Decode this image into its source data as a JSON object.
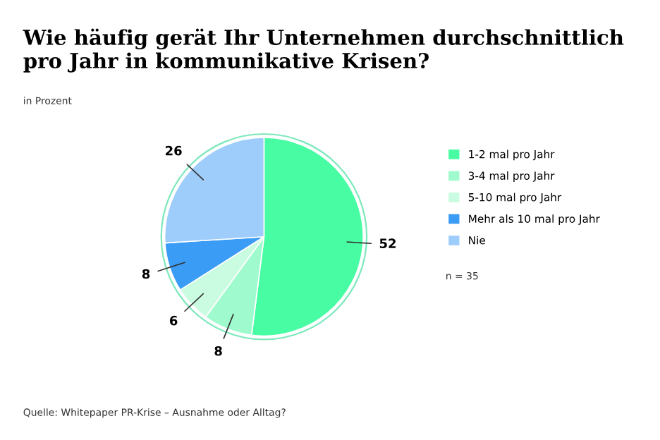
{
  "chart_data": {
    "type": "pie",
    "title": "Wie häufig gerät Ihr Unternehmen durchschnittlich\npro Jahr in kommunikative Krisen?",
    "subtitle": "in Prozent",
    "categories": [
      "1-2 mal pro Jahr",
      "3-4 mal pro Jahr",
      "5-10 mal pro Jahr",
      "Mehr als 10 mal pro Jahr",
      "Nie"
    ],
    "values": [
      52,
      8,
      6,
      8,
      26
    ],
    "colors": [
      "#48fca4",
      "#9ffacd",
      "#c9fce1",
      "#3a9cf5",
      "#9fcdfb"
    ],
    "data_labels": true,
    "legend": "right",
    "annotations": [
      "n = 35",
      "Quelle: Whitepaper PR-Krise – Ausnahme oder Alltag?"
    ]
  }
}
